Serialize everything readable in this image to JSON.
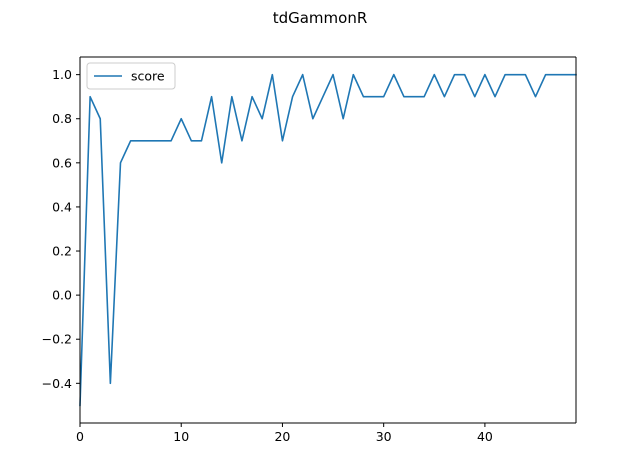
{
  "chart_data": {
    "type": "line",
    "title": "tdGammonR",
    "xlabel": "",
    "ylabel": "",
    "xlim": [
      0,
      49
    ],
    "ylim": [
      -0.58,
      1.08
    ],
    "xticks": [
      0,
      10,
      20,
      30,
      40
    ],
    "xtick_labels": [
      "0",
      "10",
      "20",
      "30",
      "40"
    ],
    "yticks": [
      -0.4,
      -0.2,
      0.0,
      0.2,
      0.4,
      0.6,
      0.8,
      1.0
    ],
    "ytick_labels": [
      "−0.4",
      "−0.2",
      "0.0",
      "0.2",
      "0.4",
      "0.6",
      "0.8",
      "1.0"
    ],
    "grid": false,
    "legend_position": "upper left",
    "series": [
      {
        "name": "score",
        "color": "#1f77b4",
        "x": [
          0,
          1,
          2,
          3,
          4,
          5,
          6,
          7,
          8,
          9,
          10,
          11,
          12,
          13,
          14,
          15,
          16,
          17,
          18,
          19,
          20,
          21,
          22,
          23,
          24,
          25,
          26,
          27,
          28,
          29,
          30,
          31,
          32,
          33,
          34,
          35,
          36,
          37,
          38,
          39,
          40,
          41,
          42,
          43,
          44,
          45,
          46,
          47,
          48,
          49
        ],
        "y": [
          -0.5,
          0.9,
          0.8,
          -0.4,
          0.6,
          0.7,
          0.7,
          0.7,
          0.7,
          0.7,
          0.8,
          0.7,
          0.7,
          0.9,
          0.6,
          0.9,
          0.7,
          0.9,
          0.8,
          1.0,
          0.7,
          0.9,
          1.0,
          0.8,
          0.9,
          1.0,
          0.8,
          1.0,
          0.9,
          0.9,
          0.9,
          1.0,
          0.9,
          0.9,
          0.9,
          1.0,
          0.9,
          1.0,
          1.0,
          0.9,
          1.0,
          0.9,
          1.0,
          1.0,
          1.0,
          0.9,
          1.0,
          1.0,
          1.0,
          1.0
        ]
      }
    ]
  }
}
